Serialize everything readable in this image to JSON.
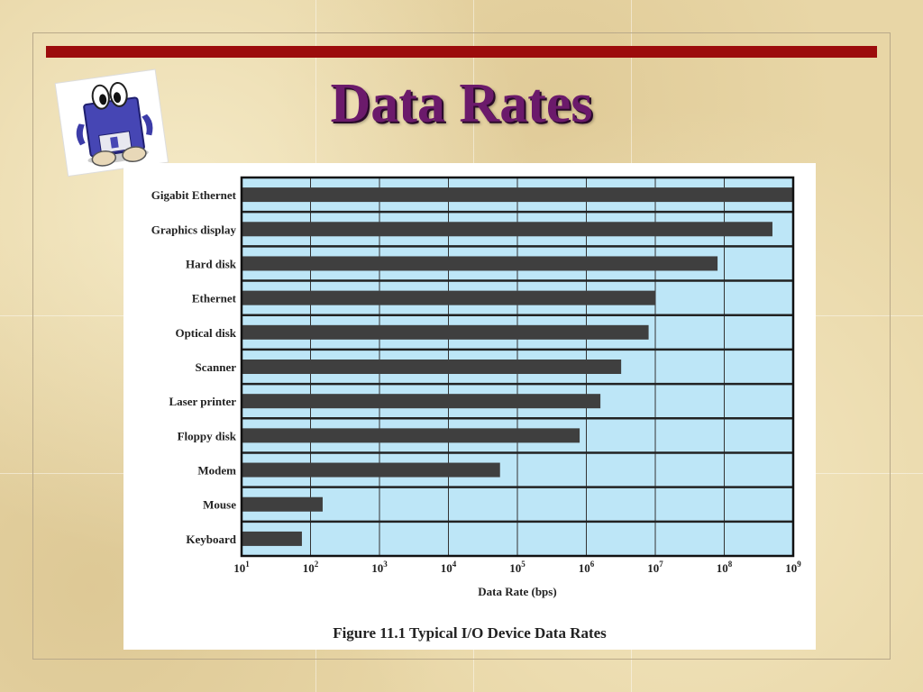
{
  "slide": {
    "title": "Data Rates"
  },
  "icons": {
    "clipart": "floppy-disk-mascot-icon"
  },
  "colors": {
    "title": "#6b1a6b",
    "accent_bar": "#9c0c0c",
    "plot_background": "#bde6f7",
    "bar": "#3f3f3f"
  },
  "figure": {
    "caption": "Figure 11.1  Typical I/O Device Data Rates"
  },
  "chart_data": {
    "type": "bar",
    "orientation": "horizontal",
    "scale": "log10",
    "xlabel": "Data Rate (bps)",
    "xlim": [
      10,
      1000000000
    ],
    "ticks": [
      {
        "base": "10",
        "exp": "1"
      },
      {
        "base": "10",
        "exp": "2"
      },
      {
        "base": "10",
        "exp": "3"
      },
      {
        "base": "10",
        "exp": "4"
      },
      {
        "base": "10",
        "exp": "5"
      },
      {
        "base": "10",
        "exp": "6"
      },
      {
        "base": "10",
        "exp": "7"
      },
      {
        "base": "10",
        "exp": "8"
      },
      {
        "base": "10",
        "exp": "9"
      }
    ],
    "categories": [
      "Gigabit Ethernet",
      "Graphics display",
      "Hard disk",
      "Ethernet",
      "Optical disk",
      "Scanner",
      "Laser printer",
      "Floppy disk",
      "Modem",
      "Mouse",
      "Keyboard"
    ],
    "values": [
      1000000000,
      500000000,
      80000000,
      10000000,
      8000000,
      3200000,
      1600000,
      800000,
      56000,
      150,
      75
    ],
    "grid": true
  }
}
